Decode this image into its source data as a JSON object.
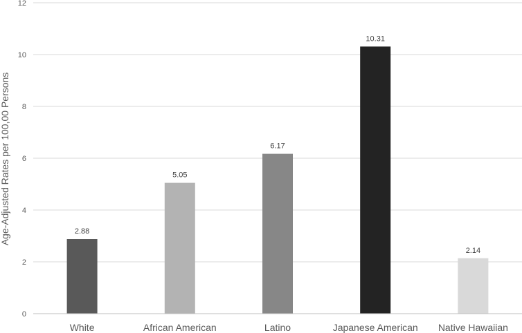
{
  "chart_data": {
    "type": "bar",
    "title": "",
    "xlabel": "",
    "ylabel": "Age-Adjusted Rates per 100,00 Persons",
    "ylim": [
      0,
      12
    ],
    "yticks": [
      0,
      2,
      4,
      6,
      8,
      10,
      12
    ],
    "grid": true,
    "legend": "none",
    "categories": [
      "White",
      "African American",
      "Latino",
      "Japanese American",
      "Native Hawaiian"
    ],
    "values": [
      2.88,
      5.05,
      6.17,
      10.31,
      2.14
    ],
    "data_labels": [
      "2.88",
      "5.05",
      "6.17",
      "10.31",
      "2.14"
    ],
    "bar_colors": [
      "#595959",
      "#b3b3b3",
      "#878787",
      "#232323",
      "#d9d9d9"
    ]
  }
}
